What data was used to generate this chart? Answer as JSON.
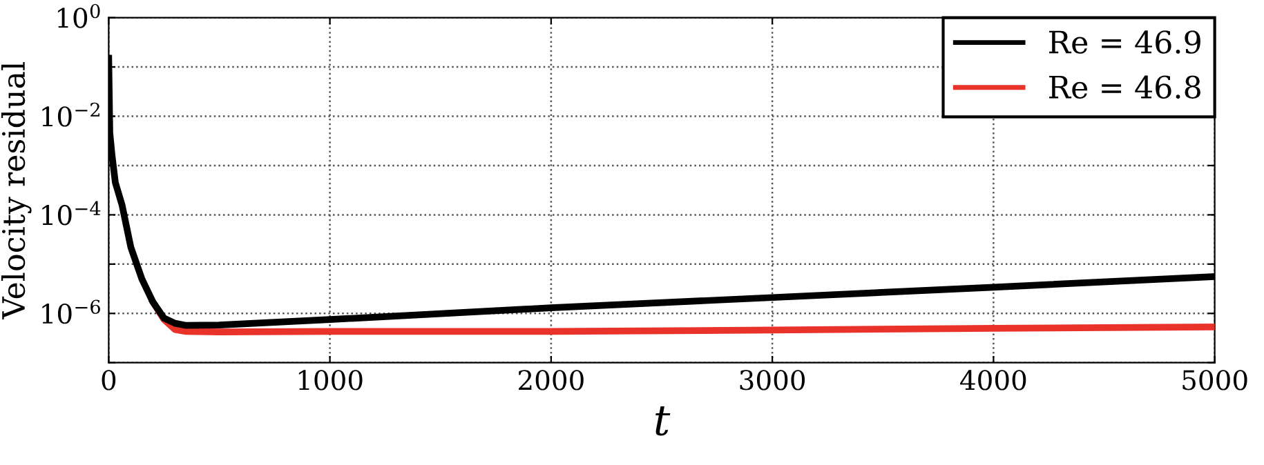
{
  "chart_data": {
    "type": "line",
    "xlabel": "t",
    "ylabel": "Velocity residual",
    "log": "y",
    "xlim": [
      0,
      5000
    ],
    "xticks": [
      0,
      1000,
      2000,
      3000,
      4000,
      5000
    ],
    "ylim": [
      1e-07,
      1
    ],
    "yticks": [
      {
        "value": 1,
        "label": "10$^{0}$"
      },
      {
        "value": 0.1,
        "label": null
      },
      {
        "value": 0.01,
        "label": "10$^{−2}$"
      },
      {
        "value": 0.001,
        "label": null
      },
      {
        "value": 0.0001,
        "label": "10$^{−4}$"
      },
      {
        "value": 1e-05,
        "label": null
      },
      {
        "value": 1e-06,
        "label": "10$^{−6}$"
      },
      {
        "value": 1e-07,
        "label": null
      }
    ],
    "grid": true,
    "legend": "top right",
    "series": [
      {
        "name": "Re = 46.9",
        "color": "#000000",
        "x": [
          0,
          5,
          15,
          30,
          60,
          100,
          150,
          200,
          250,
          300,
          350,
          500,
          1000,
          2000,
          3000,
          4000,
          5000
        ],
        "values": [
          0.15,
          0.0046,
          0.0016,
          0.00045,
          0.00016,
          2.2e-05,
          5e-06,
          1.7e-06,
          8e-07,
          6.3e-07,
          5.7e-07,
          5.8e-07,
          7.5e-07,
          1.3e-06,
          2.1e-06,
          3.4e-06,
          5.6e-06
        ]
      },
      {
        "name": "Re = 46.8",
        "color": "#e8322a",
        "x": [
          200,
          250,
          300,
          350,
          500,
          1000,
          2000,
          3000,
          4000,
          5000
        ],
        "values": [
          1.7e-06,
          7.5e-07,
          4.7e-07,
          4.3e-07,
          4.2e-07,
          4.3e-07,
          4.3e-07,
          4.6e-07,
          5e-07,
          5.3e-07
        ]
      }
    ]
  }
}
